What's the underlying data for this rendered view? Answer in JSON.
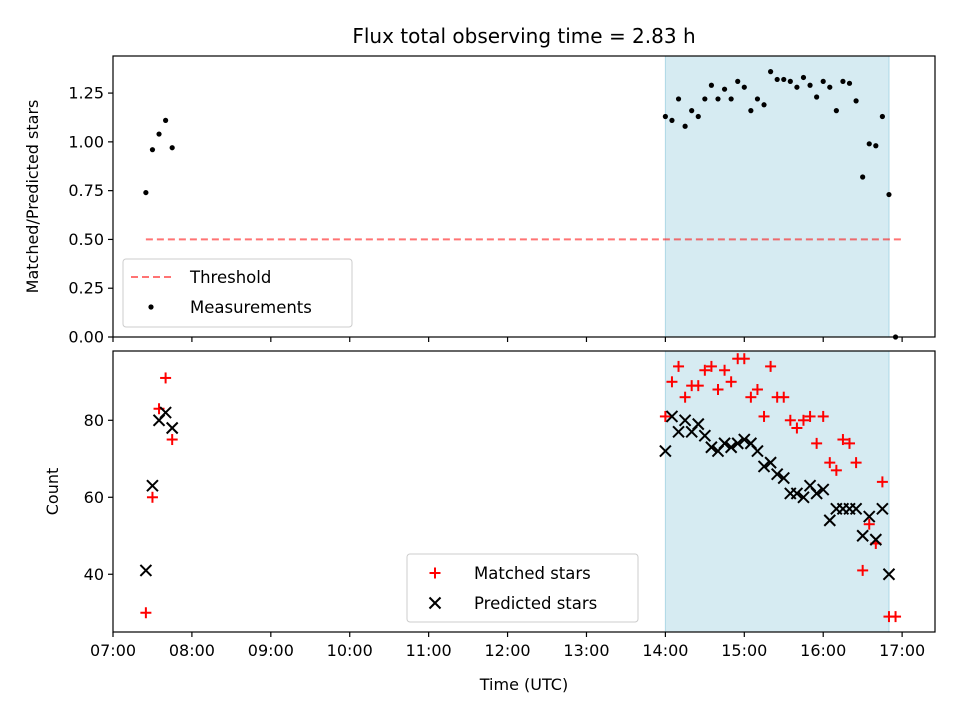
{
  "chart_data": [
    {
      "type": "scatter",
      "title": "Flux total observing time = 2.83 h",
      "xlabel": "",
      "ylabel": "Matched/Predicted stars",
      "xlim": [
        "07:00",
        "17:25"
      ],
      "ylim": [
        0,
        1.44
      ],
      "yticks": [
        "0.00",
        "0.25",
        "0.50",
        "0.75",
        "1.00",
        "1.25"
      ],
      "highlight_span": {
        "start": "14:00",
        "end": "16:50",
        "color": "#add8e6"
      },
      "threshold": {
        "name": "Threshold",
        "value": 0.5,
        "x_start": "07:25",
        "x_end": "17:00",
        "color": "#ff0000"
      },
      "legend": {
        "placement": "lower-left",
        "entries": [
          "Threshold",
          "Measurements"
        ]
      },
      "series": [
        {
          "name": "Measurements",
          "marker": "dot",
          "color": "#000000",
          "points": [
            [
              "07:25",
              0.74
            ],
            [
              "07:30",
              0.96
            ],
            [
              "07:35",
              1.04
            ],
            [
              "07:40",
              1.11
            ],
            [
              "07:45",
              0.97
            ],
            [
              "14:00",
              1.13
            ],
            [
              "14:05",
              1.11
            ],
            [
              "14:10",
              1.22
            ],
            [
              "14:15",
              1.08
            ],
            [
              "14:20",
              1.16
            ],
            [
              "14:25",
              1.13
            ],
            [
              "14:30",
              1.22
            ],
            [
              "14:35",
              1.29
            ],
            [
              "14:40",
              1.22
            ],
            [
              "14:45",
              1.27
            ],
            [
              "14:50",
              1.22
            ],
            [
              "14:55",
              1.31
            ],
            [
              "15:00",
              1.28
            ],
            [
              "15:05",
              1.16
            ],
            [
              "15:10",
              1.22
            ],
            [
              "15:15",
              1.19
            ],
            [
              "15:20",
              1.36
            ],
            [
              "15:25",
              1.32
            ],
            [
              "15:30",
              1.32
            ],
            [
              "15:35",
              1.31
            ],
            [
              "15:40",
              1.28
            ],
            [
              "15:45",
              1.33
            ],
            [
              "15:50",
              1.29
            ],
            [
              "15:55",
              1.23
            ],
            [
              "16:00",
              1.31
            ],
            [
              "16:05",
              1.28
            ],
            [
              "16:10",
              1.16
            ],
            [
              "16:15",
              1.31
            ],
            [
              "16:20",
              1.3
            ],
            [
              "16:25",
              1.21
            ],
            [
              "16:30",
              0.82
            ],
            [
              "16:35",
              0.99
            ],
            [
              "16:40",
              0.98
            ],
            [
              "16:45",
              1.13
            ],
            [
              "16:50",
              0.73
            ],
            [
              "16:55",
              0.0
            ]
          ]
        }
      ]
    },
    {
      "type": "scatter",
      "title": "",
      "xlabel": "Time (UTC)",
      "ylabel": "Count",
      "xlim": [
        "07:00",
        "17:25"
      ],
      "ylim": [
        25,
        98
      ],
      "yticks": [
        "40",
        "60",
        "80"
      ],
      "xticks": [
        "07:00",
        "08:00",
        "09:00",
        "10:00",
        "11:00",
        "12:00",
        "13:00",
        "14:00",
        "15:00",
        "16:00",
        "17:00"
      ],
      "highlight_span": {
        "start": "14:00",
        "end": "16:50",
        "color": "#add8e6"
      },
      "legend": {
        "placement": "lower-center",
        "entries": [
          "Matched stars",
          "Predicted stars"
        ]
      },
      "series": [
        {
          "name": "Matched stars",
          "marker": "plus",
          "color": "#ff0000",
          "points": [
            [
              "07:25",
              30
            ],
            [
              "07:30",
              60
            ],
            [
              "07:35",
              83
            ],
            [
              "07:40",
              91
            ],
            [
              "07:45",
              75
            ],
            [
              "14:00",
              81
            ],
            [
              "14:05",
              90
            ],
            [
              "14:10",
              94
            ],
            [
              "14:15",
              86
            ],
            [
              "14:20",
              89
            ],
            [
              "14:25",
              89
            ],
            [
              "14:30",
              93
            ],
            [
              "14:35",
              94
            ],
            [
              "14:40",
              88
            ],
            [
              "14:45",
              93
            ],
            [
              "14:50",
              90
            ],
            [
              "14:55",
              96
            ],
            [
              "15:00",
              96
            ],
            [
              "15:05",
              86
            ],
            [
              "15:10",
              88
            ],
            [
              "15:15",
              81
            ],
            [
              "15:20",
              94
            ],
            [
              "15:25",
              86
            ],
            [
              "15:30",
              86
            ],
            [
              "15:35",
              80
            ],
            [
              "15:40",
              78
            ],
            [
              "15:45",
              80
            ],
            [
              "15:50",
              81
            ],
            [
              "15:55",
              74
            ],
            [
              "16:00",
              81
            ],
            [
              "16:05",
              69
            ],
            [
              "16:10",
              67
            ],
            [
              "16:15",
              75
            ],
            [
              "16:20",
              74
            ],
            [
              "16:25",
              69
            ],
            [
              "16:30",
              41
            ],
            [
              "16:35",
              53
            ],
            [
              "16:40",
              48
            ],
            [
              "16:45",
              64
            ],
            [
              "16:50",
              29
            ],
            [
              "16:55",
              29
            ]
          ]
        },
        {
          "name": "Predicted stars",
          "marker": "x",
          "color": "#000000",
          "points": [
            [
              "07:25",
              41
            ],
            [
              "07:30",
              63
            ],
            [
              "07:35",
              80
            ],
            [
              "07:40",
              82
            ],
            [
              "07:45",
              78
            ],
            [
              "14:00",
              72
            ],
            [
              "14:05",
              81
            ],
            [
              "14:10",
              77
            ],
            [
              "14:15",
              80
            ],
            [
              "14:20",
              77
            ],
            [
              "14:25",
              79
            ],
            [
              "14:30",
              76
            ],
            [
              "14:35",
              73
            ],
            [
              "14:40",
              72
            ],
            [
              "14:45",
              74
            ],
            [
              "14:50",
              73
            ],
            [
              "14:55",
              74
            ],
            [
              "15:00",
              75
            ],
            [
              "15:05",
              74
            ],
            [
              "15:10",
              72
            ],
            [
              "15:15",
              68
            ],
            [
              "15:20",
              69
            ],
            [
              "15:25",
              66
            ],
            [
              "15:30",
              65
            ],
            [
              "15:35",
              61
            ],
            [
              "15:40",
              61
            ],
            [
              "15:45",
              60
            ],
            [
              "15:50",
              63
            ],
            [
              "15:55",
              61
            ],
            [
              "16:00",
              62
            ],
            [
              "16:05",
              54
            ],
            [
              "16:10",
              57
            ],
            [
              "16:15",
              57
            ],
            [
              "16:20",
              57
            ],
            [
              "16:25",
              57
            ],
            [
              "16:30",
              50
            ],
            [
              "16:35",
              55
            ],
            [
              "16:40",
              49
            ],
            [
              "16:45",
              57
            ],
            [
              "16:50",
              40
            ]
          ]
        }
      ]
    }
  ]
}
